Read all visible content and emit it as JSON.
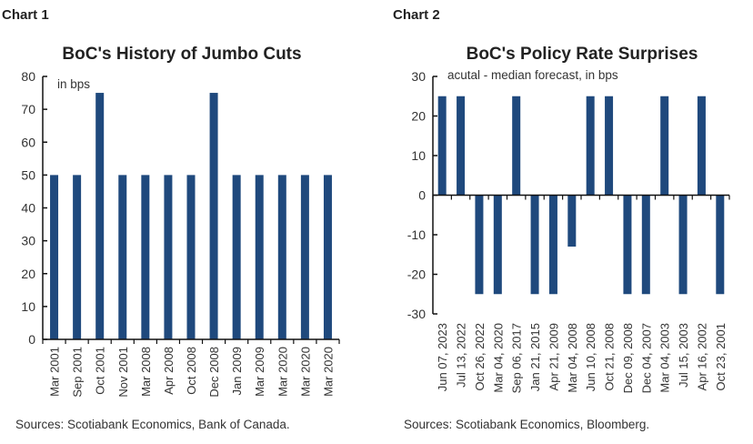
{
  "chart_data": [
    {
      "type": "bar",
      "header": "Chart 1",
      "title": "BoC's History of Jumbo Cuts",
      "unit_note": "in bps",
      "categories": [
        "Mar 2001",
        "Sep 2001",
        "Oct 2001",
        "Nov 2001",
        "Mar 2008",
        "Apr 2008",
        "Oct 2008",
        "Dec 2008",
        "Jan 2009",
        "Mar 2009",
        "Mar 2020",
        "Mar 2020",
        "Mar 2020"
      ],
      "values": [
        50,
        50,
        75,
        50,
        50,
        50,
        50,
        75,
        50,
        50,
        50,
        50,
        50
      ],
      "ylim": [
        0,
        80
      ],
      "yticks": [
        0,
        10,
        20,
        30,
        40,
        50,
        60,
        70,
        80
      ],
      "grid": false,
      "color": "#1F497D",
      "source": "Sources: Scotiabank Economics, Bank of Canada."
    },
    {
      "type": "bar",
      "header": "Chart 2",
      "title": "BoC's Policy Rate Surprises",
      "unit_note": "acutal - median forecast, in bps",
      "categories": [
        "Jun 07, 2023",
        "Jul 13, 2022",
        "Oct 26, 2022",
        "Mar 04, 2020",
        "Sep 06, 2017",
        "Jan 21, 2015",
        "Apr 21, 2009",
        "Mar 04, 2008",
        "Jun 10, 2008",
        "Oct 21, 2008",
        "Dec 09, 2008",
        "Dec 04, 2007",
        "Mar 04, 2003",
        "Jul 15, 2003",
        "Apr 16, 2002",
        "Oct 23, 2001"
      ],
      "values": [
        25,
        25,
        -25,
        -25,
        25,
        -25,
        -25,
        -13,
        25,
        25,
        -25,
        -25,
        25,
        -25,
        25,
        -25
      ],
      "ylim": [
        -30,
        30
      ],
      "yticks": [
        -30,
        -20,
        -10,
        0,
        10,
        20,
        30
      ],
      "grid": false,
      "color": "#1F497D",
      "source": "Sources: Scotiabank Economics, Bloomberg."
    }
  ]
}
